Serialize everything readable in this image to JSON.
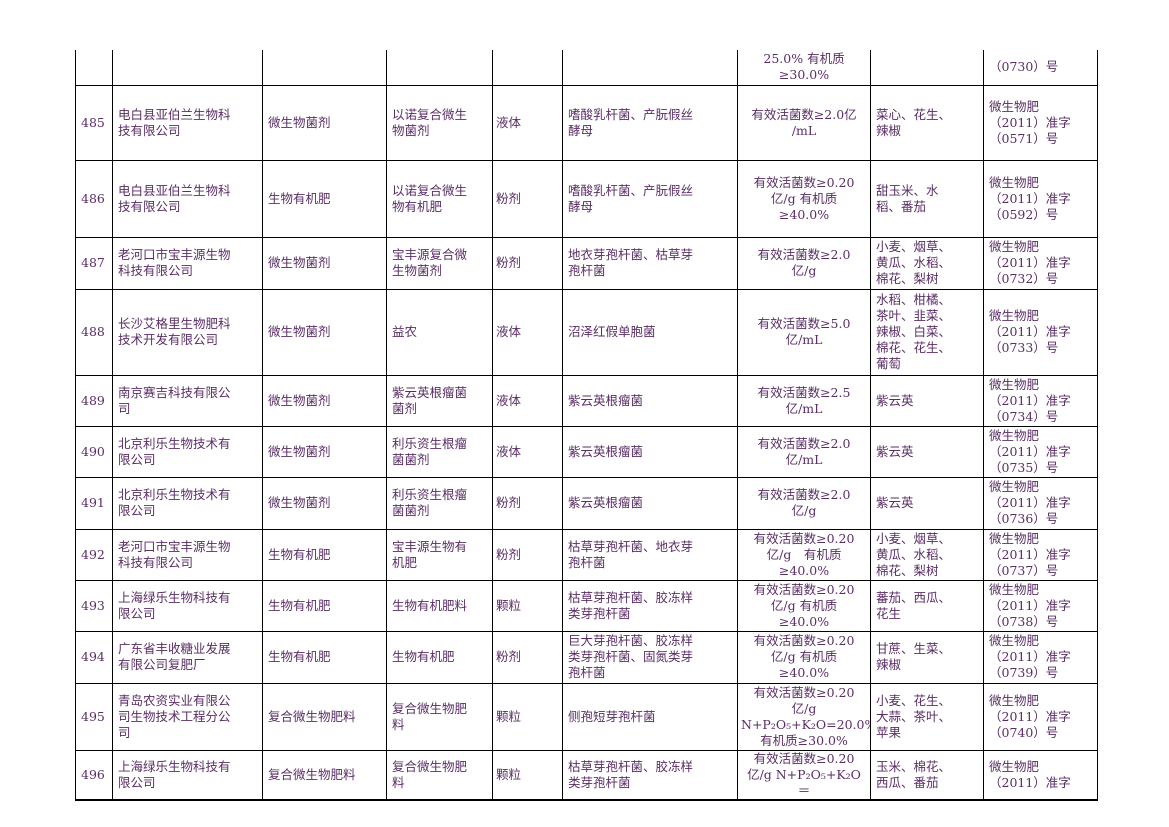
{
  "table": {
    "rows": [
      [
        null,
        null,
        null,
        null,
        null,
        null,
        "25.0% 有机质\n≥30.0%",
        null,
        "（0730）号"
      ],
      [
        "485",
        "电白县亚伯兰生物科\n技有限公司",
        "微生物菌剂",
        "以诺复合微生\n物菌剂",
        "液体",
        "嗜酸乳杆菌、产朊假丝\n酵母",
        "有效活菌数≥2.0亿\n/mL",
        "菜心、花生、\n辣椒",
        "微生物肥\n（2011）准字\n（0571）号"
      ],
      [
        "486",
        "电白县亚伯兰生物科\n技有限公司",
        "生物有机肥",
        "以诺复合微生\n物有机肥",
        "粉剂",
        "嗜酸乳杆菌、产朊假丝\n酵母",
        "有效活菌数≥0.20\n亿/g 有机质\n≥40.0%",
        "甜玉米、水\n稻、番茄",
        "微生物肥\n（2011）准字\n（0592）号"
      ],
      [
        "487",
        "老河口市宝丰源生物\n科技有限公司",
        "微生物菌剂",
        "宝丰源复合微\n生物菌剂",
        "粉剂",
        "地衣芽孢杆菌、枯草芽\n孢杆菌",
        "有效活菌数≥2.0\n亿/g",
        "小麦、烟草、\n黄瓜、水稻、\n棉花、梨树",
        "微生物肥\n（2011）准字\n（0732）号"
      ],
      [
        "488",
        "长沙艾格里生物肥科\n技术开发有限公司",
        "微生物菌剂",
        "益农",
        "液体",
        "沼泽红假单胞菌",
        "有效活菌数≥5.0\n亿/mL",
        "水稻、柑橘、\n茶叶、韭菜、\n辣椒、白菜、\n棉花、花生、\n葡萄",
        "微生物肥\n（2011）准字\n（0733）号"
      ],
      [
        "489",
        "南京赛吉科技有限公\n司",
        "微生物菌剂",
        "紫云英根瘤菌\n菌剂",
        "液体",
        "紫云英根瘤菌",
        "有效活菌数≥2.5\n亿/mL",
        "紫云英",
        "微生物肥\n（2011）准字\n（0734）号"
      ],
      [
        "490",
        "北京利乐生物技术有\n限公司",
        "微生物菌剂",
        "利乐资生根瘤\n菌菌剂",
        "液体",
        "紫云英根瘤菌",
        "有效活菌数≥2.0\n亿/mL",
        "紫云英",
        "微生物肥\n（2011）准字\n（0735）号"
      ],
      [
        "491",
        "北京利乐生物技术有\n限公司",
        "微生物菌剂",
        "利乐资生根瘤\n菌菌剂",
        "粉剂",
        "紫云英根瘤菌",
        "有效活菌数≥2.0\n亿/g",
        "紫云英",
        "微生物肥\n（2011）准字\n（0736）号"
      ],
      [
        "492",
        "老河口市宝丰源生物\n科技有限公司",
        "生物有机肥",
        "宝丰源生物有\n机肥",
        "粉剂",
        "枯草芽孢杆菌、地衣芽\n孢杆菌",
        "有效活菌数≥0.20\n亿/g　有机质\n≥40.0%",
        "小麦、烟草、\n黄瓜、水稻、\n棉花、梨树",
        "微生物肥\n（2011）准字\n（0737）号"
      ],
      [
        "493",
        "上海绿乐生物科技有\n限公司",
        "生物有机肥",
        "生物有机肥料",
        "颗粒",
        "枯草芽孢杆菌、胶冻样\n类芽孢杆菌",
        "有效活菌数≥0.20\n亿/g 有机质\n≥40.0%",
        "蕃茄、西瓜、\n花生",
        "微生物肥\n（2011）准字\n（0738）号"
      ],
      [
        "494",
        "广东省丰收糖业发展\n有限公司复肥厂",
        "生物有机肥",
        "生物有机肥",
        "粉剂",
        "巨大芽孢杆菌、胶冻样\n类芽孢杆菌、固氮类芽\n孢杆菌",
        "有效活菌数≥0.20\n亿/g 有机质\n≥40.0%",
        "甘蔗、生菜、\n辣椒",
        "微生物肥\n（2011）准字\n（0739）号"
      ],
      [
        "495",
        "青岛农资实业有限公\n司生物技术工程分公\n司",
        "复合微生物肥料",
        "复合微生物肥\n料",
        "颗粒",
        "侧孢短芽孢杆菌",
        "有效活菌数≥0.20\n亿/g\nN+P₂O₅+K₂O=20.0%\n有机质≥30.0%",
        "小麦、花生、\n大蒜、茶叶、\n苹果",
        "微生物肥\n（2011）准字\n（0740）号"
      ],
      [
        "496",
        "上海绿乐生物科技有\n限公司",
        "复合微生物肥料",
        "复合微生物肥\n料",
        "颗粒",
        "枯草芽孢杆菌、胶冻样\n类芽孢杆菌",
        "有效活菌数≥0.20\n亿/g N+P₂O₅+K₂O＝",
        "玉米、棉花、\n西瓜、番茄",
        "微生物肥\n（2011）准字"
      ]
    ]
  }
}
